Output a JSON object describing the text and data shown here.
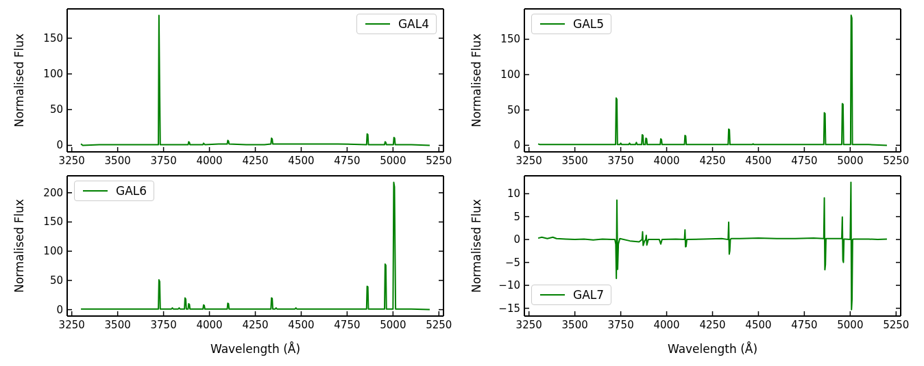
{
  "chart_data": [
    {
      "type": "line",
      "ylabel": "Normalised Flux",
      "xlim": [
        3225,
        5275
      ],
      "xticks": [
        3250,
        3500,
        3750,
        4000,
        4250,
        4500,
        4750,
        5000,
        5250
      ],
      "ylim": [
        -9.1,
        191
      ],
      "yticks": [
        0,
        50,
        100,
        150
      ],
      "legend": "top right",
      "series": [
        {
          "name": "GAL4",
          "color": "#008000",
          "x": [
            3300,
            3310,
            3400,
            3500,
            3600,
            3700,
            3722,
            3725,
            3728,
            3732,
            3800,
            3884,
            3887,
            3891,
            3894,
            3965,
            3968,
            3972,
            3975,
            4050,
            4097,
            4100,
            4104,
            4107,
            4200,
            4300,
            4335,
            4338,
            4342,
            4345,
            4500,
            4700,
            4856,
            4859,
            4863,
            4866,
            4954,
            4957,
            4961,
            4964,
            5002,
            5005,
            5009,
            5012,
            5100,
            5200
          ],
          "values": [
            2,
            0,
            1,
            1,
            1,
            1,
            1,
            182,
            100,
            1,
            1,
            1,
            5,
            4,
            1,
            1,
            3,
            2,
            1,
            2,
            2,
            7,
            6,
            2,
            1,
            1,
            2,
            10,
            9,
            2,
            2,
            2,
            1,
            16,
            15,
            1,
            1,
            5,
            4,
            1,
            1,
            11,
            10,
            1,
            1,
            0
          ]
        }
      ]
    },
    {
      "type": "line",
      "ylabel": "Normalised Flux",
      "xlim": [
        3225,
        5275
      ],
      "xticks": [
        3250,
        3500,
        3750,
        4000,
        4250,
        4500,
        4750,
        5000,
        5250
      ],
      "ylim": [
        -9.3,
        193
      ],
      "yticks": [
        0,
        50,
        100,
        150
      ],
      "legend": "top left",
      "series": [
        {
          "name": "GAL5",
          "color": "#008000",
          "x": [
            3300,
            3310,
            3400,
            3500,
            3600,
            3700,
            3722,
            3725,
            3729,
            3732,
            3745,
            3750,
            3755,
            3793,
            3798,
            3803,
            3830,
            3835,
            3840,
            3864,
            3867,
            3871,
            3874,
            3884,
            3887,
            3891,
            3894,
            3965,
            3968,
            3972,
            3975,
            4050,
            4097,
            4100,
            4104,
            4107,
            4200,
            4300,
            4335,
            4338,
            4342,
            4345,
            4466,
            4471,
            4476,
            4600,
            4700,
            4800,
            4856,
            4859,
            4863,
            4866,
            4954,
            4957,
            4961,
            4964,
            5002,
            5005,
            5009,
            5012,
            5100,
            5200
          ],
          "values": [
            2,
            1,
            1,
            1,
            1,
            1,
            1,
            67,
            65,
            1,
            1,
            3,
            1,
            1,
            3,
            1,
            1,
            4,
            1,
            1,
            15,
            14,
            1,
            1,
            10,
            9,
            1,
            1,
            9,
            8,
            1,
            1,
            1,
            14,
            13,
            1,
            1,
            1,
            1,
            23,
            22,
            1,
            1,
            2,
            1,
            1,
            1,
            1,
            1,
            46,
            45,
            1,
            1,
            59,
            58,
            1,
            1,
            184,
            180,
            1,
            1,
            0
          ]
        }
      ]
    },
    {
      "type": "line",
      "xlabel": "Wavelength (Å)",
      "ylabel": "Normalised Flux",
      "xlim": [
        3225,
        5275
      ],
      "xticks": [
        3250,
        3500,
        3750,
        4000,
        4250,
        4500,
        4750,
        5000,
        5250
      ],
      "ylim": [
        -11,
        229
      ],
      "yticks": [
        0,
        50,
        100,
        150,
        200
      ],
      "legend": "top left",
      "series": [
        {
          "name": "GAL6",
          "color": "#008000",
          "x": [
            3300,
            3310,
            3400,
            3500,
            3600,
            3700,
            3722,
            3725,
            3729,
            3732,
            3793,
            3798,
            3803,
            3830,
            3835,
            3840,
            3864,
            3867,
            3871,
            3874,
            3884,
            3887,
            3891,
            3894,
            3965,
            3968,
            3972,
            3975,
            4050,
            4097,
            4100,
            4104,
            4107,
            4200,
            4300,
            4335,
            4338,
            4342,
            4345,
            4358,
            4363,
            4368,
            4466,
            4471,
            4476,
            4600,
            4700,
            4800,
            4856,
            4859,
            4863,
            4866,
            4954,
            4957,
            4961,
            4964,
            5000,
            5004,
            5008,
            5014,
            5100,
            5200
          ],
          "values": [
            1,
            1,
            1,
            1,
            1,
            1,
            1,
            51,
            48,
            1,
            1,
            3,
            1,
            1,
            3,
            1,
            1,
            20,
            18,
            1,
            1,
            10,
            9,
            1,
            1,
            8,
            7,
            1,
            1,
            1,
            11,
            10,
            1,
            1,
            1,
            1,
            20,
            19,
            1,
            1,
            3,
            1,
            1,
            3,
            1,
            1,
            1,
            1,
            1,
            40,
            39,
            1,
            1,
            78,
            76,
            1,
            1,
            218,
            210,
            1,
            1,
            0
          ]
        }
      ]
    },
    {
      "type": "line",
      "xlabel": "Wavelength (Å)",
      "ylabel": "Normalised Flux",
      "xlim": [
        3225,
        5275
      ],
      "xticks": [
        3250,
        3500,
        3750,
        4000,
        4250,
        4500,
        4750,
        5000,
        5250
      ],
      "ylim": [
        -16.7,
        13.9
      ],
      "yticks": [
        -15,
        -10,
        -5,
        0,
        5,
        10
      ],
      "legend": "bottom left",
      "series": [
        {
          "name": "GAL7",
          "color": "#008000",
          "x": [
            3300,
            3320,
            3350,
            3380,
            3400,
            3450,
            3500,
            3550,
            3600,
            3650,
            3700,
            3718,
            3723,
            3726,
            3729,
            3733,
            3737,
            3745,
            3800,
            3850,
            3866,
            3869,
            3872,
            3880,
            3886,
            3889,
            3892,
            3900,
            3960,
            3968,
            3975,
            4050,
            4097,
            4100,
            4103,
            4106,
            4110,
            4200,
            4300,
            4335,
            4338,
            4341,
            4344,
            4347,
            4352,
            4400,
            4500,
            4600,
            4700,
            4800,
            4856,
            4859,
            4862,
            4865,
            4868,
            4875,
            4954,
            4957,
            4960,
            4963,
            4966,
            4972,
            5000,
            5004,
            5007,
            5010,
            5013,
            5018,
            5050,
            5100,
            5150,
            5200
          ],
          "values": [
            0.3,
            0.5,
            0.2,
            0.5,
            0.2,
            0.1,
            0,
            0.1,
            -0.1,
            0.1,
            0,
            0,
            -1,
            -8.5,
            8.6,
            -6.5,
            -1,
            0.2,
            -0.3,
            -0.5,
            0,
            1.7,
            -1.3,
            -0.3,
            0,
            0.9,
            -1.2,
            0,
            0,
            -1,
            0,
            0.1,
            0,
            2.1,
            -1.6,
            -1.5,
            0,
            0.1,
            0.2,
            0,
            3.8,
            -3.2,
            -2.5,
            0,
            0.2,
            0.2,
            0.3,
            0.2,
            0.2,
            0.3,
            0.2,
            9.1,
            -6.6,
            -5.5,
            0.2,
            0.2,
            0.2,
            4.9,
            -4.5,
            -5,
            0.1,
            0.1,
            0,
            12.5,
            -15.3,
            -13,
            0,
            0.1,
            0.1,
            0.1,
            0,
            0.1
          ]
        }
      ]
    }
  ]
}
